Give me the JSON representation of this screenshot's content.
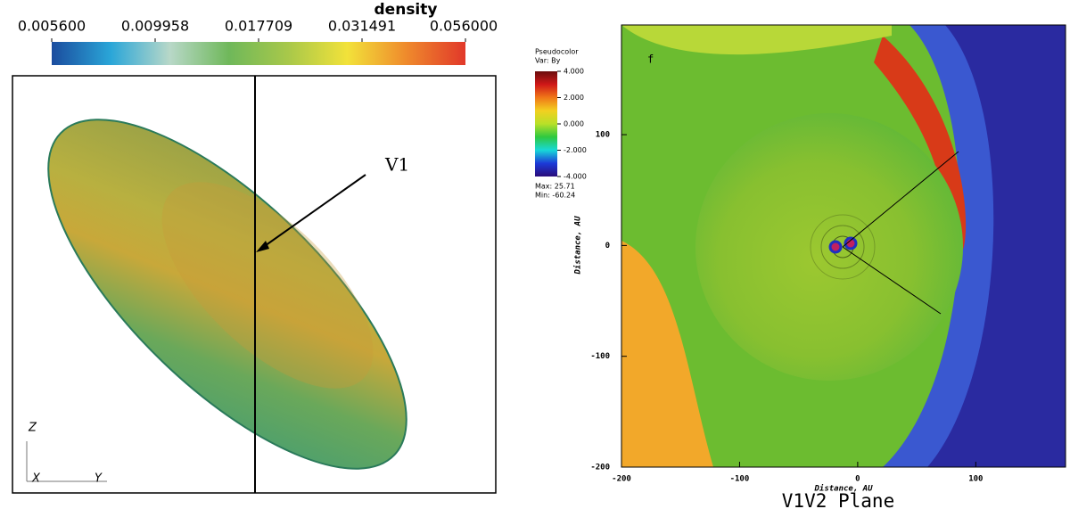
{
  "chart_data": [
    {
      "type": "surface",
      "colorbar_title": "density",
      "colorbar_log": true,
      "colorbar_lim": [
        0.0056,
        0.056
      ],
      "colorbar_ticks": [
        {
          "value": 0.0056,
          "label": "0.005600"
        },
        {
          "value": 0.009958,
          "label": "0.009958"
        },
        {
          "value": 0.017709,
          "label": "0.017709"
        },
        {
          "value": 0.031491,
          "label": "0.031491"
        },
        {
          "value": 0.056,
          "label": "0.056000"
        }
      ],
      "colorbar_colors": [
        "#1b4c9e",
        "#2aa6d8",
        "#b8d8c8",
        "#6fb85a",
        "#a8c84a",
        "#f2e23a",
        "#ef8a2c",
        "#e1382a"
      ],
      "annotation": "V1",
      "axis_labels": [
        "Z",
        "X",
        "Y"
      ]
    },
    {
      "type": "pseudocolor",
      "panel_label": "f",
      "title": "V1V2 Plane",
      "xlabel": "Distance, AU",
      "ylabel": "Distance, AU",
      "xlim": [
        -200,
        176
      ],
      "ylim": [
        -200,
        199
      ],
      "xticks": [
        -200,
        -100,
        0,
        100
      ],
      "yticks": [
        -200,
        -100,
        0,
        100
      ],
      "legend_title": "Pseudocolor",
      "legend_var": "Var: By",
      "colorbar_lim": [
        -4,
        4
      ],
      "colorbar_ticks": [
        {
          "value": 4,
          "label": "4.000"
        },
        {
          "value": 2,
          "label": "2.000"
        },
        {
          "value": 0,
          "label": "0.000"
        },
        {
          "value": -2,
          "label": "-2.000"
        },
        {
          "value": -4,
          "label": "-4.000"
        }
      ],
      "colorbar_colors": [
        "#2a0c7a",
        "#1c3ad8",
        "#18d8d8",
        "#2ec840",
        "#b8e028",
        "#f2d020",
        "#f07818",
        "#d01818",
        "#6a0c0c"
      ],
      "max_label": "Max: 25.71",
      "min_label": "Min: -60.24"
    }
  ]
}
